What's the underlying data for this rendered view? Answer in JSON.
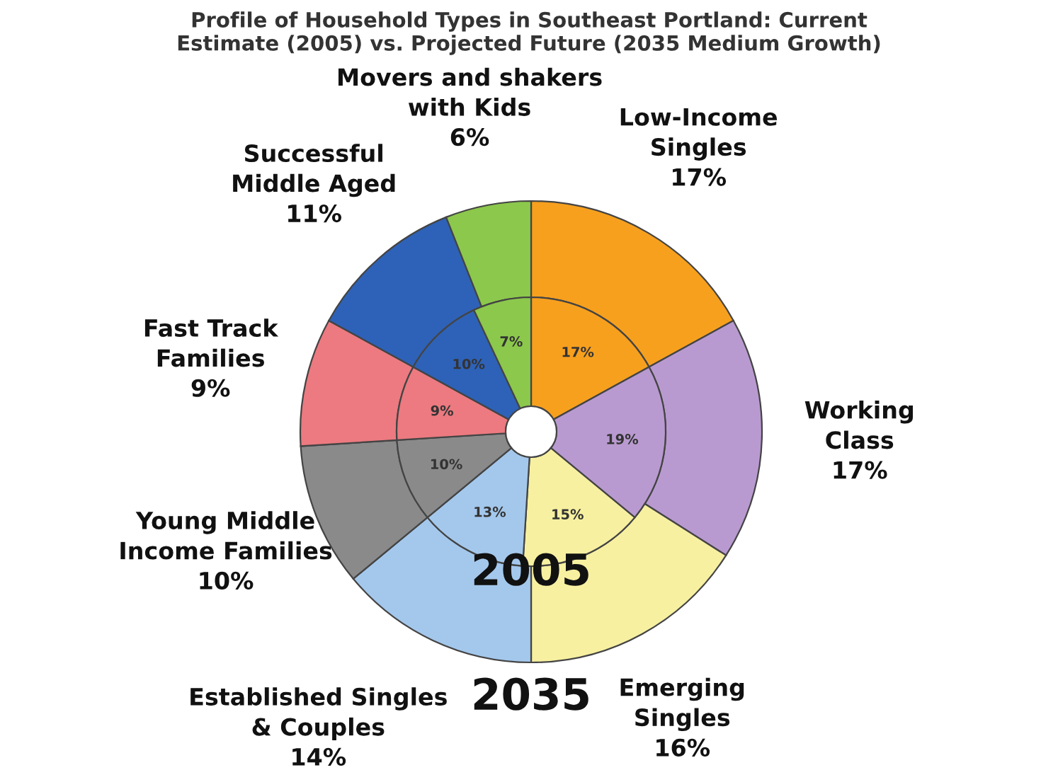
{
  "chart_data": {
    "type": "donut",
    "title": "Profile of Household Types in Southeast Portland: Current\nEstimate (2005) vs. Projected Future (2035 Medium Growth)",
    "categories": [
      "Low-Income\nSingles",
      "Working\nClass",
      "Emerging\nSingles",
      "Established Singles\n& Couples",
      "Young Middle\nIncome Families",
      "Fast Track\nFamilies",
      "Successful\nMiddle Aged",
      "Movers and shakers\nwith Kids"
    ],
    "colors": [
      "#f7a01e",
      "#b99ad0",
      "#f7f0a0",
      "#a4c8ec",
      "#8a8a8a",
      "#ec7a80",
      "#2e62b8",
      "#8cc84c"
    ],
    "series": [
      {
        "name": "2035",
        "values": [
          17,
          17,
          16,
          14,
          10,
          9,
          11,
          6
        ],
        "value_labels": [
          "17%",
          "17%",
          "16%",
          "14%",
          "10%",
          "9%",
          "11%",
          "6%"
        ]
      },
      {
        "name": "2005",
        "values": [
          17,
          19,
          15,
          13,
          10,
          9,
          10,
          7
        ],
        "value_labels": [
          "17%",
          "19%",
          "15%",
          "13%",
          "10%",
          "9%",
          "10%",
          "7%"
        ]
      }
    ]
  }
}
